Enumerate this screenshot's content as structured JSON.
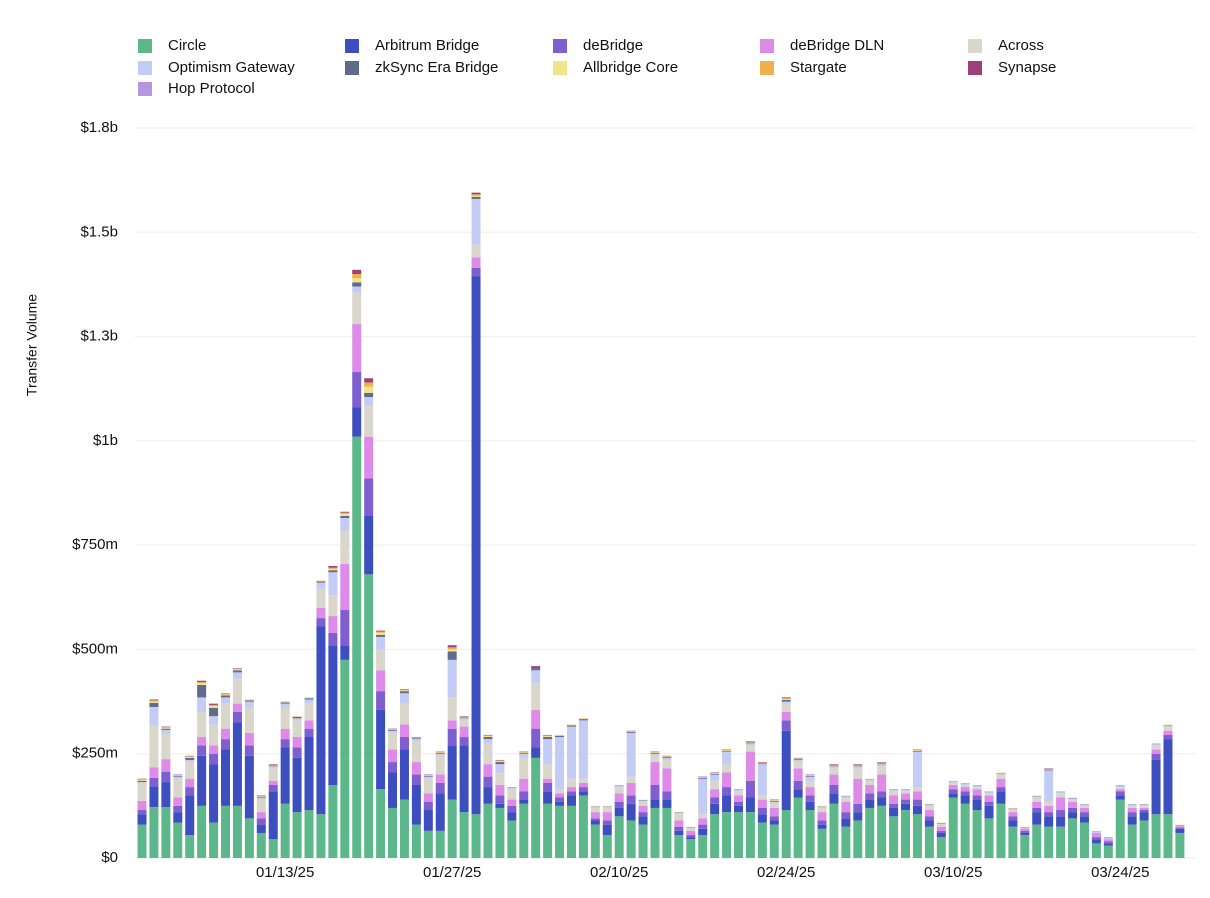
{
  "chart_data": {
    "type": "stacked_bar",
    "y_label": "Transfer Volume",
    "categories": [
      null,
      null,
      null,
      null,
      null,
      null,
      null,
      null,
      null,
      null,
      null,
      null,
      "01/13/25",
      null,
      null,
      null,
      null,
      null,
      null,
      null,
      null,
      null,
      null,
      null,
      null,
      null,
      "01/27/25",
      null,
      null,
      null,
      null,
      null,
      null,
      null,
      null,
      null,
      null,
      null,
      null,
      null,
      "02/10/25",
      null,
      null,
      null,
      null,
      null,
      null,
      null,
      null,
      null,
      null,
      null,
      null,
      null,
      "02/24/25",
      null,
      null,
      null,
      null,
      null,
      null,
      null,
      null,
      null,
      null,
      null,
      null,
      null,
      "03/10/25",
      null,
      null,
      null,
      null,
      null,
      null,
      null,
      null,
      null,
      null,
      null,
      null,
      null,
      "03/24/25",
      null,
      null,
      null,
      null,
      null
    ],
    "ylim": [
      0,
      1750
    ],
    "yticks": [
      {
        "value": 0,
        "label": "$0"
      },
      {
        "value": 250,
        "label": "$250m"
      },
      {
        "value": 500,
        "label": "$500m"
      },
      {
        "value": 750,
        "label": "$750m"
      },
      {
        "value": 1000,
        "label": "$1b"
      },
      {
        "value": 1250,
        "label": "$1.3b"
      },
      {
        "value": 1500,
        "label": "$1.5b"
      },
      {
        "value": 1750,
        "label": "$1.8b"
      }
    ],
    "grid": true,
    "series": [
      {
        "name": "Circle",
        "color": "#5cb88a",
        "values": [
          80,
          122,
          122,
          85,
          55,
          125,
          85,
          125,
          125,
          95,
          60,
          45,
          130,
          110,
          115,
          105,
          175,
          475,
          1010,
          680,
          165,
          120,
          140,
          80,
          65,
          65,
          140,
          110,
          105,
          130,
          120,
          90,
          130,
          240,
          130,
          125,
          125,
          150,
          80,
          55,
          100,
          90,
          80,
          120,
          120,
          55,
          45,
          55,
          105,
          110,
          110,
          110,
          85,
          80,
          115,
          145,
          115,
          70,
          130,
          75,
          90,
          120,
          125,
          100,
          115,
          105,
          75,
          50,
          145,
          130,
          115,
          95,
          130,
          75,
          55,
          80,
          75,
          75,
          95,
          85,
          35,
          30,
          140,
          80,
          90,
          105,
          105,
          60
        ]
      },
      {
        "name": "Arbitrum Bridge",
        "color": "#3d4fbf",
        "values": [
          25,
          50,
          60,
          25,
          95,
          120,
          140,
          135,
          200,
          150,
          20,
          115,
          135,
          130,
          175,
          450,
          335,
          35,
          70,
          140,
          190,
          85,
          120,
          95,
          50,
          90,
          130,
          160,
          1290,
          40,
          10,
          20,
          10,
          25,
          30,
          10,
          25,
          10,
          10,
          25,
          20,
          40,
          20,
          20,
          20,
          10,
          5,
          15,
          25,
          40,
          15,
          35,
          20,
          10,
          190,
          20,
          20,
          10,
          25,
          20,
          20,
          20,
          20,
          20,
          15,
          20,
          15,
          10,
          10,
          20,
          25,
          30,
          30,
          15,
          5,
          30,
          25,
          25,
          15,
          15,
          10,
          5,
          10,
          20,
          20,
          130,
          180,
          10
        ]
      },
      {
        "name": "deBridge",
        "color": "#7e5fcf",
        "values": [
          10,
          20,
          25,
          15,
          20,
          25,
          25,
          25,
          25,
          25,
          15,
          15,
          20,
          25,
          20,
          20,
          30,
          85,
          85,
          90,
          45,
          25,
          30,
          25,
          20,
          25,
          40,
          20,
          20,
          25,
          20,
          15,
          20,
          45,
          20,
          10,
          10,
          10,
          5,
          10,
          15,
          20,
          10,
          35,
          20,
          10,
          5,
          10,
          15,
          20,
          10,
          40,
          15,
          10,
          25,
          20,
          15,
          10,
          20,
          15,
          20,
          15,
          15,
          10,
          10,
          15,
          10,
          5,
          10,
          10,
          10,
          10,
          10,
          10,
          5,
          10,
          10,
          15,
          10,
          10,
          5,
          5,
          10,
          10,
          5,
          15,
          10,
          3
        ]
      },
      {
        "name": "deBridge DLN",
        "color": "#dd8ae8",
        "values": [
          22,
          25,
          30,
          20,
          20,
          20,
          20,
          25,
          20,
          30,
          15,
          10,
          25,
          25,
          20,
          25,
          40,
          110,
          115,
          100,
          50,
          30,
          30,
          30,
          20,
          20,
          20,
          25,
          25,
          30,
          25,
          15,
          30,
          45,
          10,
          10,
          10,
          10,
          15,
          20,
          20,
          30,
          15,
          55,
          55,
          15,
          10,
          15,
          20,
          35,
          15,
          70,
          20,
          20,
          20,
          30,
          20,
          20,
          25,
          25,
          60,
          20,
          40,
          20,
          15,
          20,
          15,
          10,
          10,
          10,
          15,
          15,
          20,
          10,
          5,
          15,
          15,
          30,
          15,
          10,
          10,
          5,
          5,
          10,
          5,
          10,
          10,
          3
        ]
      },
      {
        "name": "Across",
        "color": "#d9d6cc",
        "values": [
          45,
          100,
          60,
          45,
          40,
          60,
          50,
          60,
          60,
          60,
          30,
          30,
          50,
          40,
          40,
          45,
          50,
          80,
          75,
          75,
          50,
          40,
          50,
          50,
          35,
          45,
          55,
          15,
          30,
          50,
          30,
          25,
          50,
          65,
          35,
          10,
          20,
          10,
          10,
          10,
          15,
          15,
          10,
          15,
          20,
          15,
          5,
          10,
          20,
          20,
          10,
          15,
          10,
          10,
          20,
          15,
          15,
          10,
          15,
          10,
          25,
          10,
          20,
          10,
          5,
          10,
          10,
          5,
          5,
          5,
          5,
          5,
          10,
          5,
          0,
          10,
          10,
          10,
          5,
          5,
          0,
          0,
          5,
          5,
          5,
          10,
          10,
          0
        ]
      },
      {
        "name": "Optimism Gateway",
        "color": "#c2ccf5",
        "values": [
          0,
          45,
          10,
          5,
          5,
          35,
          20,
          15,
          15,
          15,
          5,
          5,
          10,
          5,
          10,
          15,
          55,
          30,
          15,
          20,
          30,
          5,
          25,
          5,
          5,
          5,
          90,
          5,
          110,
          10,
          20,
          3,
          10,
          30,
          60,
          125,
          125,
          140,
          3,
          3,
          3,
          105,
          3,
          5,
          5,
          3,
          3,
          85,
          15,
          30,
          3,
          5,
          75,
          5,
          5,
          5,
          10,
          3,
          5,
          3,
          5,
          3,
          5,
          3,
          3,
          85,
          3,
          3,
          3,
          3,
          3,
          3,
          3,
          3,
          3,
          3,
          75,
          3,
          3,
          3,
          3,
          3,
          3,
          3,
          3,
          3,
          3,
          2
        ]
      },
      {
        "name": "zkSync Era Bridge",
        "color": "#5f6b8a",
        "values": [
          3,
          10,
          3,
          2,
          5,
          30,
          20,
          5,
          5,
          3,
          2,
          2,
          3,
          3,
          3,
          3,
          5,
          5,
          10,
          10,
          5,
          2,
          5,
          2,
          2,
          2,
          20,
          2,
          5,
          5,
          5,
          1,
          2,
          5,
          5,
          3,
          3,
          3,
          1,
          1,
          1,
          2,
          1,
          2,
          2,
          1,
          1,
          2,
          2,
          2,
          1,
          2,
          2,
          2,
          4,
          2,
          2,
          1,
          2,
          1,
          2,
          1,
          2,
          1,
          1,
          2,
          1,
          1,
          1,
          1,
          1,
          1,
          1,
          1,
          1,
          1,
          2,
          1,
          1,
          1,
          1,
          1,
          1,
          1,
          1,
          1,
          1,
          1
        ]
      },
      {
        "name": "Allbridge Core",
        "color": "#f0e58a",
        "values": [
          2,
          3,
          2,
          1,
          2,
          4,
          4,
          2,
          2,
          1,
          1,
          1,
          1,
          1,
          1,
          1,
          3,
          5,
          10,
          15,
          5,
          1,
          2,
          1,
          1,
          1,
          5,
          1,
          3,
          2,
          2,
          1,
          1,
          0,
          2,
          1,
          1,
          1,
          1,
          1,
          1,
          1,
          1,
          1,
          1,
          1,
          1,
          1,
          1,
          1,
          1,
          1,
          1,
          1,
          2,
          1,
          1,
          1,
          1,
          1,
          1,
          1,
          1,
          1,
          1,
          1,
          1,
          1,
          1,
          1,
          1,
          1,
          1,
          1,
          1,
          1,
          1,
          1,
          1,
          1,
          1,
          1,
          1,
          1,
          1,
          1,
          1,
          1
        ]
      },
      {
        "name": "Stargate",
        "color": "#f0b04a",
        "values": [
          2,
          3,
          2,
          1,
          2,
          3,
          3,
          2,
          2,
          1,
          1,
          1,
          1,
          1,
          1,
          1,
          3,
          3,
          10,
          10,
          3,
          1,
          2,
          1,
          1,
          1,
          5,
          1,
          3,
          2,
          2,
          0,
          1,
          0,
          2,
          1,
          1,
          1,
          0,
          0,
          0,
          1,
          0,
          1,
          1,
          0,
          0,
          1,
          1,
          1,
          0,
          1,
          1,
          1,
          2,
          1,
          1,
          0,
          1,
          0,
          1,
          0,
          1,
          0,
          0,
          1,
          0,
          0,
          0,
          0,
          0,
          0,
          0,
          0,
          0,
          0,
          1,
          0,
          0,
          0,
          0,
          0,
          0,
          0,
          0,
          0,
          0,
          0
        ]
      },
      {
        "name": "Synapse",
        "color": "#9c3f7a",
        "values": [
          1,
          2,
          1,
          1,
          1,
          3,
          3,
          1,
          1,
          0,
          1,
          1,
          0,
          0,
          0,
          0,
          4,
          2,
          10,
          10,
          2,
          1,
          1,
          1,
          1,
          1,
          5,
          1,
          4,
          1,
          1,
          0,
          1,
          5,
          1,
          0,
          0,
          0,
          0,
          0,
          0,
          1,
          0,
          1,
          1,
          0,
          0,
          1,
          1,
          1,
          0,
          1,
          1,
          1,
          2,
          1,
          1,
          0,
          1,
          0,
          1,
          0,
          1,
          0,
          0,
          1,
          0,
          0,
          0,
          0,
          0,
          0,
          0,
          0,
          0,
          0,
          1,
          0,
          0,
          0,
          0,
          0,
          0,
          0,
          0,
          0,
          0,
          0
        ]
      },
      {
        "name": "Hop Protocol",
        "color": "#b795e0",
        "values": [
          0,
          0,
          0,
          0,
          0,
          0,
          0,
          0,
          0,
          0,
          0,
          0,
          0,
          0,
          0,
          0,
          0,
          0,
          0,
          0,
          0,
          0,
          0,
          0,
          0,
          0,
          0,
          0,
          0,
          0,
          0,
          0,
          0,
          0,
          0,
          0,
          0,
          0,
          0,
          0,
          0,
          0,
          0,
          0,
          0,
          0,
          0,
          0,
          0,
          0,
          0,
          0,
          0,
          0,
          0,
          0,
          0,
          0,
          0,
          0,
          0,
          0,
          0,
          0,
          0,
          0,
          0,
          0,
          0,
          0,
          0,
          0,
          0,
          0,
          0,
          0,
          0,
          0,
          0,
          0,
          0,
          0,
          0,
          0,
          0,
          0,
          0,
          0
        ]
      }
    ]
  }
}
